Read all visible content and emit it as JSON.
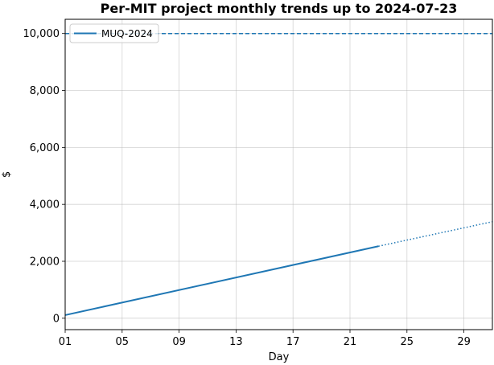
{
  "chart_data": {
    "type": "line",
    "title": "Per-MIT project monthly trends up to 2024-07-23",
    "xlabel": "Day",
    "ylabel": "$",
    "xlim": [
      1,
      31
    ],
    "ylim": [
      -400,
      10500
    ],
    "x_ticks": [
      "01",
      "05",
      "09",
      "13",
      "17",
      "21",
      "25",
      "29"
    ],
    "x_tick_values": [
      1,
      5,
      9,
      13,
      17,
      21,
      25,
      29
    ],
    "y_ticks": [
      "0",
      "2,000",
      "4,000",
      "6,000",
      "8,000",
      "10,000"
    ],
    "y_tick_values": [
      0,
      2000,
      4000,
      6000,
      8000,
      10000
    ],
    "grid": true,
    "legend_position": "top-left",
    "color": "#1f77b4",
    "series": [
      {
        "name": "MUQ-2024",
        "actual": {
          "x": [
            1,
            23
          ],
          "y": [
            110,
            2530
          ]
        },
        "projection": {
          "x": [
            23,
            31
          ],
          "y": [
            2530,
            3390
          ]
        },
        "budget": 10000
      }
    ]
  }
}
